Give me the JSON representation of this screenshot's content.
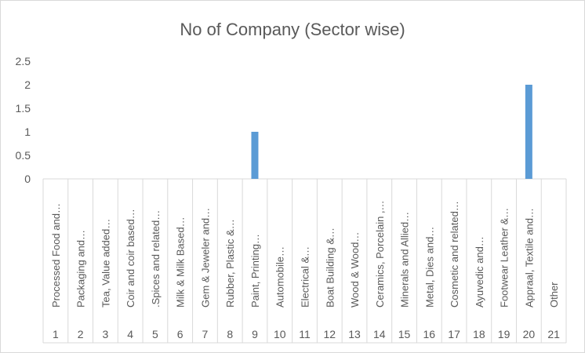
{
  "chart_data": {
    "type": "bar",
    "title": "No of Company  (Sector wise)",
    "xlabel": "",
    "ylabel": "",
    "ylim": [
      0,
      2.5
    ],
    "yticks": [
      "0",
      "0.5",
      "1",
      "1.5",
      "2",
      "2.5"
    ],
    "grid": false,
    "legend": "none",
    "bar_color": "#5b9bd5",
    "categories": [
      {
        "num": "1",
        "name": "Processed Food and…",
        "value": 0
      },
      {
        "num": "2",
        "name": "Packaging and…",
        "value": 0
      },
      {
        "num": "3",
        "name": "Tea, Value added…",
        "value": 0
      },
      {
        "num": "4",
        "name": "Coir and coir based…",
        "value": 0
      },
      {
        "num": "5",
        "name": ".Spices and related…",
        "value": 0
      },
      {
        "num": "6",
        "name": "Milk & Milk Based…",
        "value": 0
      },
      {
        "num": "7",
        "name": "Gem & Jeweler and…",
        "value": 0
      },
      {
        "num": "8",
        "name": "Rubber, Plastic &…",
        "value": 0
      },
      {
        "num": "9",
        "name": "Paint, Printing…",
        "value": 1
      },
      {
        "num": "10",
        "name": "Automobile…",
        "value": 0
      },
      {
        "num": "11",
        "name": "Electrical &…",
        "value": 0
      },
      {
        "num": "12",
        "name": "Boat Building &…",
        "value": 0
      },
      {
        "num": "13",
        "name": "Wood & Wood…",
        "value": 0
      },
      {
        "num": "14",
        "name": "Ceramics, Porcelain ,…",
        "value": 0
      },
      {
        "num": "15",
        "name": "Minerals and Allied…",
        "value": 0
      },
      {
        "num": "16",
        "name": "Metal, Dies and…",
        "value": 0
      },
      {
        "num": "17",
        "name": "Cosmetic and related…",
        "value": 0
      },
      {
        "num": "18",
        "name": "Ayuvedic and…",
        "value": 0
      },
      {
        "num": "19",
        "name": "Footwear Leather &…",
        "value": 0
      },
      {
        "num": "20",
        "name": "Appraal, Textile and…",
        "value": 2
      },
      {
        "num": "21",
        "name": "Other",
        "value": 0
      }
    ]
  }
}
